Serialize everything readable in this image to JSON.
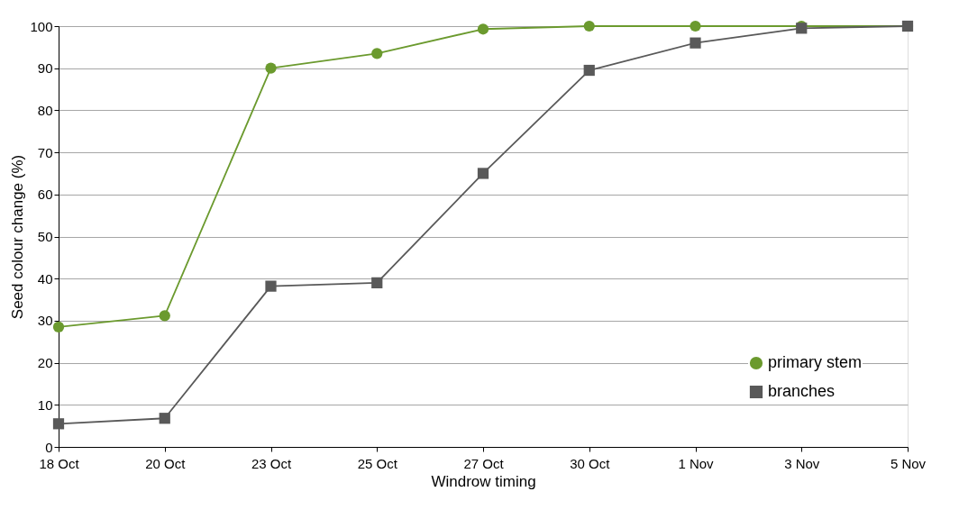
{
  "chart_data": {
    "type": "line",
    "xlabel": "Windrow timing",
    "ylabel": "Seed colour change (%)",
    "categories": [
      "18 Oct",
      "20 Oct",
      "23 Oct",
      "25 Oct",
      "27 Oct",
      "30 Oct",
      "1 Nov",
      "3 Nov",
      "5 Nov"
    ],
    "series": [
      {
        "name": "primary stem",
        "color": "#6b9a2e",
        "marker": "circle",
        "values": [
          28.5,
          31.2,
          90,
          93.5,
          99.3,
          100,
          100,
          100,
          100
        ]
      },
      {
        "name": "branches",
        "color": "#595959",
        "marker": "square",
        "values": [
          5.5,
          6.8,
          38.2,
          39,
          65,
          89.5,
          96,
          99.5,
          100
        ]
      }
    ],
    "ylim": [
      0,
      100
    ],
    "yticks": [
      0,
      10,
      20,
      30,
      40,
      50,
      60,
      70,
      80,
      90,
      100
    ],
    "grid": "y",
    "legend": "bottom right",
    "line_style": "solid"
  }
}
